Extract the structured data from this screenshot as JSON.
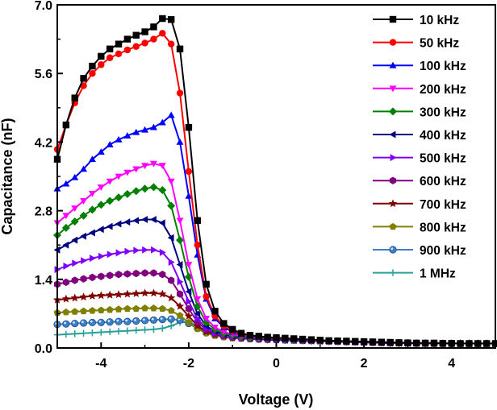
{
  "chart_data": {
    "type": "line",
    "title": "",
    "xlabel": "Voltage (V)",
    "ylabel": "Capacitance (nF)",
    "xlim": [
      -5,
      5
    ],
    "ylim": [
      0,
      7
    ],
    "xticks": [
      -4,
      -2,
      0,
      2,
      4
    ],
    "xtick_labels": [
      "-4",
      "-2",
      "0",
      "2",
      "4"
    ],
    "yticks": [
      0,
      1.4,
      2.8,
      4.2,
      5.6,
      7.0
    ],
    "ytick_labels": [
      "0.0",
      "1.4",
      "2.8",
      "4.2",
      "5.6",
      "7.0"
    ],
    "grid": false,
    "legend_position": "top-right",
    "x": [
      -5.0,
      -4.8,
      -4.6,
      -4.4,
      -4.2,
      -4.0,
      -3.8,
      -3.6,
      -3.4,
      -3.2,
      -3.0,
      -2.8,
      -2.6,
      -2.4,
      -2.2,
      -2.0,
      -1.8,
      -1.6,
      -1.4,
      -1.2,
      -1.0,
      -0.8,
      -0.6,
      -0.4,
      -0.2,
      0.0,
      0.2,
      0.4,
      0.6,
      0.8,
      1.0,
      1.2,
      1.4,
      1.6,
      1.8,
      2.0,
      2.2,
      2.4,
      2.6,
      2.8,
      3.0,
      3.2,
      3.4,
      3.6,
      3.8,
      4.0,
      4.2,
      4.4,
      4.6,
      4.8,
      5.0
    ],
    "series": [
      {
        "name": "10 kHz",
        "color": "#000000",
        "marker": "square",
        "values": [
          3.85,
          4.55,
          5.1,
          5.5,
          5.75,
          5.95,
          6.1,
          6.2,
          6.3,
          6.38,
          6.45,
          6.55,
          6.72,
          6.7,
          6.1,
          4.5,
          2.6,
          1.3,
          0.75,
          0.5,
          0.38,
          0.3,
          0.26,
          0.24,
          0.22,
          0.21,
          0.2,
          0.19,
          0.18,
          0.17,
          0.16,
          0.15,
          0.145,
          0.14,
          0.135,
          0.13,
          0.125,
          0.12,
          0.115,
          0.11,
          0.105,
          0.1,
          0.1,
          0.1,
          0.095,
          0.095,
          0.09,
          0.09,
          0.09,
          0.09,
          0.09
        ]
      },
      {
        "name": "50 kHz",
        "color": "#ff0000",
        "marker": "circle",
        "values": [
          4.05,
          4.55,
          5.0,
          5.35,
          5.6,
          5.78,
          5.92,
          6.0,
          6.08,
          6.15,
          6.22,
          6.3,
          6.42,
          6.2,
          5.2,
          3.6,
          2.1,
          1.05,
          0.65,
          0.45,
          0.35,
          0.28,
          0.25,
          0.23,
          0.21,
          0.2,
          0.19,
          0.18,
          0.17,
          0.16,
          0.15,
          0.145,
          0.14,
          0.135,
          0.13,
          0.125,
          0.12,
          0.115,
          0.11,
          0.105,
          0.1,
          0.1,
          0.095,
          0.095,
          0.09,
          0.09,
          0.09,
          0.09,
          0.09,
          0.09,
          0.09
        ]
      },
      {
        "name": "100 kHz",
        "color": "#0000ff",
        "marker": "triangle-up",
        "values": [
          3.25,
          3.35,
          3.48,
          3.65,
          3.85,
          4.0,
          4.15,
          4.25,
          4.33,
          4.4,
          4.45,
          4.5,
          4.6,
          4.75,
          4.2,
          3.1,
          1.9,
          1.0,
          0.6,
          0.42,
          0.33,
          0.27,
          0.24,
          0.22,
          0.2,
          0.19,
          0.18,
          0.17,
          0.16,
          0.15,
          0.145,
          0.14,
          0.135,
          0.13,
          0.125,
          0.12,
          0.115,
          0.11,
          0.105,
          0.1,
          0.1,
          0.095,
          0.095,
          0.09,
          0.09,
          0.09,
          0.09,
          0.09,
          0.09,
          0.09,
          0.09
        ]
      },
      {
        "name": "200 kHz",
        "color": "#ff00ff",
        "marker": "triangle-down",
        "values": [
          2.55,
          2.7,
          2.85,
          3.0,
          3.15,
          3.28,
          3.4,
          3.5,
          3.58,
          3.65,
          3.72,
          3.76,
          3.72,
          3.4,
          2.6,
          1.7,
          1.0,
          0.6,
          0.42,
          0.33,
          0.28,
          0.25,
          0.23,
          0.21,
          0.2,
          0.19,
          0.18,
          0.17,
          0.16,
          0.15,
          0.145,
          0.14,
          0.135,
          0.13,
          0.125,
          0.12,
          0.115,
          0.11,
          0.105,
          0.1,
          0.1,
          0.095,
          0.095,
          0.09,
          0.09,
          0.09,
          0.09,
          0.09,
          0.09,
          0.09,
          0.09
        ]
      },
      {
        "name": "300 kHz",
        "color": "#008000",
        "marker": "diamond",
        "values": [
          2.3,
          2.45,
          2.58,
          2.7,
          2.82,
          2.92,
          3.0,
          3.07,
          3.14,
          3.2,
          3.25,
          3.28,
          3.22,
          2.9,
          2.2,
          1.45,
          0.85,
          0.52,
          0.38,
          0.3,
          0.26,
          0.23,
          0.21,
          0.2,
          0.19,
          0.18,
          0.17,
          0.16,
          0.155,
          0.15,
          0.145,
          0.14,
          0.135,
          0.13,
          0.125,
          0.12,
          0.115,
          0.11,
          0.105,
          0.1,
          0.1,
          0.095,
          0.095,
          0.09,
          0.09,
          0.09,
          0.09,
          0.09,
          0.09,
          0.09,
          0.09
        ]
      },
      {
        "name": "400 kHz",
        "color": "#000080",
        "marker": "triangle-left",
        "values": [
          2.0,
          2.1,
          2.2,
          2.28,
          2.35,
          2.42,
          2.48,
          2.53,
          2.57,
          2.6,
          2.62,
          2.62,
          2.55,
          2.25,
          1.7,
          1.15,
          0.7,
          0.45,
          0.34,
          0.28,
          0.24,
          0.22,
          0.2,
          0.19,
          0.18,
          0.17,
          0.16,
          0.155,
          0.15,
          0.145,
          0.14,
          0.135,
          0.13,
          0.125,
          0.12,
          0.115,
          0.11,
          0.105,
          0.1,
          0.1,
          0.095,
          0.095,
          0.09,
          0.09,
          0.09,
          0.09,
          0.09,
          0.09,
          0.09,
          0.09,
          0.09
        ]
      },
      {
        "name": "500 kHz",
        "color": "#8000ff",
        "marker": "triangle-right",
        "values": [
          1.6,
          1.67,
          1.73,
          1.78,
          1.83,
          1.87,
          1.91,
          1.94,
          1.97,
          1.99,
          2.0,
          2.0,
          1.95,
          1.75,
          1.35,
          0.95,
          0.6,
          0.4,
          0.31,
          0.26,
          0.23,
          0.21,
          0.2,
          0.19,
          0.18,
          0.17,
          0.16,
          0.155,
          0.15,
          0.145,
          0.14,
          0.135,
          0.13,
          0.125,
          0.12,
          0.115,
          0.11,
          0.105,
          0.1,
          0.1,
          0.095,
          0.095,
          0.09,
          0.09,
          0.09,
          0.09,
          0.09,
          0.09,
          0.09,
          0.09,
          0.09
        ]
      },
      {
        "name": "600 kHz",
        "color": "#800080",
        "marker": "hexagon",
        "values": [
          1.3,
          1.34,
          1.38,
          1.41,
          1.44,
          1.46,
          1.48,
          1.5,
          1.51,
          1.52,
          1.53,
          1.53,
          1.5,
          1.38,
          1.1,
          0.8,
          0.53,
          0.37,
          0.29,
          0.25,
          0.22,
          0.2,
          0.19,
          0.18,
          0.17,
          0.165,
          0.16,
          0.155,
          0.15,
          0.145,
          0.14,
          0.135,
          0.13,
          0.125,
          0.12,
          0.115,
          0.11,
          0.105,
          0.1,
          0.1,
          0.095,
          0.095,
          0.09,
          0.09,
          0.09,
          0.09,
          0.09,
          0.09,
          0.09,
          0.09,
          0.09
        ]
      },
      {
        "name": "700 kHz",
        "color": "#800000",
        "marker": "star",
        "values": [
          0.98,
          1.0,
          1.02,
          1.04,
          1.06,
          1.07,
          1.08,
          1.09,
          1.1,
          1.11,
          1.12,
          1.12,
          1.1,
          1.02,
          0.85,
          0.65,
          0.45,
          0.33,
          0.27,
          0.24,
          0.21,
          0.2,
          0.19,
          0.18,
          0.17,
          0.165,
          0.16,
          0.155,
          0.15,
          0.145,
          0.14,
          0.135,
          0.13,
          0.125,
          0.12,
          0.115,
          0.11,
          0.105,
          0.1,
          0.1,
          0.095,
          0.095,
          0.09,
          0.09,
          0.09,
          0.09,
          0.09,
          0.09,
          0.09,
          0.09,
          0.09
        ]
      },
      {
        "name": "800 kHz",
        "color": "#808000",
        "marker": "pentagon",
        "values": [
          0.72,
          0.73,
          0.74,
          0.75,
          0.76,
          0.77,
          0.78,
          0.79,
          0.8,
          0.8,
          0.81,
          0.81,
          0.8,
          0.76,
          0.66,
          0.52,
          0.39,
          0.3,
          0.25,
          0.22,
          0.2,
          0.19,
          0.18,
          0.175,
          0.17,
          0.165,
          0.16,
          0.155,
          0.15,
          0.145,
          0.14,
          0.135,
          0.13,
          0.125,
          0.12,
          0.115,
          0.11,
          0.105,
          0.1,
          0.1,
          0.095,
          0.095,
          0.09,
          0.09,
          0.09,
          0.09,
          0.09,
          0.09,
          0.09,
          0.09,
          0.09
        ]
      },
      {
        "name": "900 kHz",
        "color": "#3a7fc8",
        "marker": "sphere",
        "values": [
          0.48,
          0.49,
          0.5,
          0.51,
          0.52,
          0.52,
          0.53,
          0.54,
          0.54,
          0.55,
          0.56,
          0.57,
          0.58,
          0.59,
          0.57,
          0.5,
          0.4,
          0.31,
          0.26,
          0.23,
          0.21,
          0.2,
          0.19,
          0.18,
          0.175,
          0.17,
          0.165,
          0.16,
          0.155,
          0.15,
          0.145,
          0.14,
          0.135,
          0.13,
          0.125,
          0.12,
          0.115,
          0.11,
          0.105,
          0.1,
          0.1,
          0.095,
          0.095,
          0.09,
          0.09,
          0.09,
          0.09,
          0.09,
          0.09,
          0.09,
          0.09
        ]
      },
      {
        "name": "1 MHz",
        "color": "#2aa198",
        "marker": "plus",
        "values": [
          0.27,
          0.28,
          0.29,
          0.3,
          0.31,
          0.32,
          0.33,
          0.34,
          0.35,
          0.36,
          0.37,
          0.38,
          0.4,
          0.45,
          0.52,
          0.53,
          0.45,
          0.35,
          0.28,
          0.24,
          0.22,
          0.2,
          0.19,
          0.18,
          0.175,
          0.17,
          0.165,
          0.16,
          0.155,
          0.15,
          0.145,
          0.14,
          0.135,
          0.13,
          0.125,
          0.12,
          0.115,
          0.11,
          0.105,
          0.1,
          0.1,
          0.095,
          0.095,
          0.09,
          0.09,
          0.09,
          0.09,
          0.09,
          0.09,
          0.09,
          0.09
        ]
      }
    ]
  }
}
